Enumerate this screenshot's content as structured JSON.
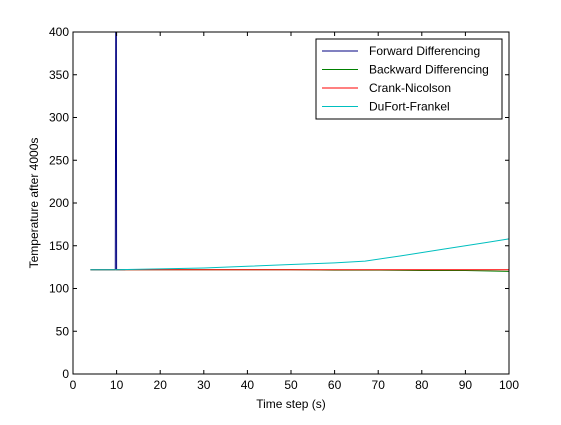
{
  "chart_data": {
    "type": "line",
    "title": "",
    "xlabel": "Time step (s)",
    "ylabel": "Temperature after 4000s",
    "xlim": [
      0,
      100
    ],
    "ylim": [
      0,
      400
    ],
    "x_ticks": [
      0,
      10,
      20,
      30,
      40,
      50,
      60,
      70,
      80,
      90,
      100
    ],
    "y_ticks": [
      0,
      50,
      100,
      150,
      200,
      250,
      300,
      350,
      400
    ],
    "grid": false,
    "legend_position": "top-right",
    "series": [
      {
        "name": "Forward Differencing",
        "color": "#000080",
        "points": [
          [
            4,
            122
          ],
          [
            9.5,
            122
          ],
          [
            9.7,
            122.5
          ],
          [
            9.8,
            400
          ],
          [
            9.95,
            400
          ],
          [
            10,
            122
          ],
          [
            11,
            122
          ],
          [
            12,
            122
          ]
        ]
      },
      {
        "name": "Backward Differencing",
        "color": "#008000",
        "points": [
          [
            4,
            122
          ],
          [
            10,
            122
          ],
          [
            20,
            122
          ],
          [
            30,
            122
          ],
          [
            40,
            122
          ],
          [
            50,
            122
          ],
          [
            60,
            121.5
          ],
          [
            70,
            121.5
          ],
          [
            80,
            121
          ],
          [
            90,
            121
          ],
          [
            100,
            120
          ]
        ]
      },
      {
        "name": "Crank-Nicolson",
        "color": "#ff0000",
        "points": [
          [
            4,
            122
          ],
          [
            10,
            122
          ],
          [
            20,
            122
          ],
          [
            30,
            122
          ],
          [
            40,
            122
          ],
          [
            50,
            122
          ],
          [
            60,
            122
          ],
          [
            70,
            122
          ],
          [
            80,
            122
          ],
          [
            90,
            122
          ],
          [
            100,
            122
          ]
        ]
      },
      {
        "name": "DuFort-Frankel",
        "color": "#00bfbf",
        "points": [
          [
            4,
            122
          ],
          [
            10,
            122
          ],
          [
            20,
            123
          ],
          [
            30,
            124
          ],
          [
            40,
            126
          ],
          [
            50,
            128
          ],
          [
            60,
            130
          ],
          [
            67,
            132
          ],
          [
            75,
            138
          ],
          [
            85,
            146
          ],
          [
            95,
            154
          ],
          [
            100,
            158
          ]
        ]
      }
    ]
  }
}
